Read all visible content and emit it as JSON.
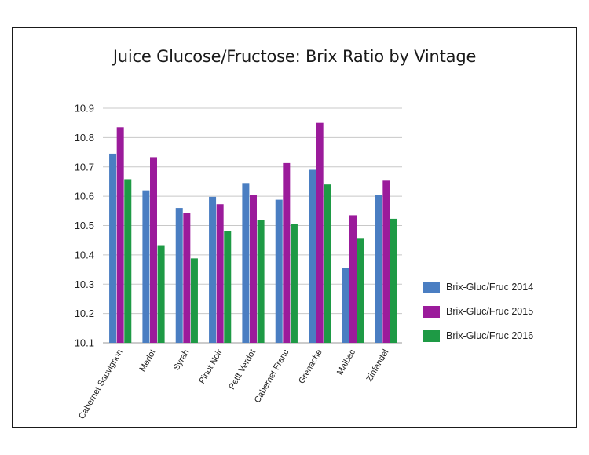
{
  "chart_data": {
    "type": "bar",
    "title": "Juice Glucose/Fructose: Brix Ratio by Vintage",
    "categories": [
      "Cabernet Sauvignon",
      "Merlot",
      "Syrah",
      "Pinot Noir",
      "Petit Verdot",
      "Cabernet Franc",
      "Grenache",
      "Malbec",
      "Zinfandel"
    ],
    "series": [
      {
        "name": "Brix-Gluc/Fruc 2014",
        "color": "#4a7ec2",
        "values": [
          10.745,
          10.62,
          10.56,
          10.598,
          10.645,
          10.588,
          10.69,
          10.356,
          10.605
        ]
      },
      {
        "name": "Brix-Gluc/Fruc 2015",
        "color": "#9b1b9b",
        "values": [
          10.835,
          10.733,
          10.543,
          10.573,
          10.603,
          10.713,
          10.85,
          10.535,
          10.653
        ]
      },
      {
        "name": "Brix-Gluc/Fruc 2016",
        "color": "#1e9a45",
        "values": [
          10.658,
          10.433,
          10.388,
          10.48,
          10.518,
          10.505,
          10.64,
          10.455,
          10.523
        ]
      }
    ],
    "ylim": [
      10.1,
      10.9
    ],
    "yticks": [
      "10.1",
      "10.2",
      "10.3",
      "10.4",
      "10.5",
      "10.6",
      "10.7",
      "10.8",
      "10.9"
    ],
    "grid": true,
    "legend": "right"
  }
}
